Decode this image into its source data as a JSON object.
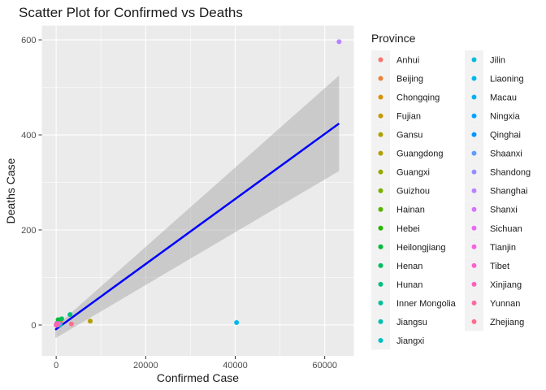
{
  "chart_data": {
    "type": "scatter",
    "title": "Scatter Plot for Confirmed vs Deaths",
    "xlabel": "Confirmed Case",
    "ylabel": "Deaths Case",
    "xlim": [
      -3200,
      66500
    ],
    "ylim": [
      -65,
      630
    ],
    "x_ticks": [
      0,
      20000,
      40000,
      60000
    ],
    "x_tick_labels": [
      "0",
      "20000",
      "40000",
      "60000"
    ],
    "y_ticks": [
      0,
      200,
      400,
      600
    ],
    "y_tick_labels": [
      "0",
      "200",
      "400",
      "600"
    ],
    "grid": true,
    "legend": {
      "title": "Province",
      "placement": "right",
      "columns": 2
    },
    "fit": {
      "method": "linear",
      "color": "#0000FF",
      "band_color": "#999999",
      "x_range": [
        -200,
        63200
      ],
      "line": [
        -10,
        424
      ],
      "band_upper": [
        -4,
        525
      ],
      "band_lower": [
        -28,
        324
      ]
    },
    "series": [
      {
        "name": "Anhui",
        "color": "#F8766D",
        "x": 990,
        "y": 6
      },
      {
        "name": "Beijing",
        "color": "#EC8239",
        "x": 400,
        "y": 4
      },
      {
        "name": "Chongqing",
        "color": "#DB8E00",
        "x": 576,
        "y": 6
      },
      {
        "name": "Fujian",
        "color": "#C79800",
        "x": 296,
        "y": 1
      },
      {
        "name": "Gansu",
        "color": "#AFA100",
        "x": 91,
        "y": 2
      },
      {
        "name": "Guangdong",
        "color": "#B49F00",
        "x": 7600,
        "y": 8
      },
      {
        "name": "Guangxi",
        "color": "#96A900",
        "x": 245,
        "y": 2
      },
      {
        "name": "Guizhou",
        "color": "#7AAF00",
        "x": 146,
        "y": 2
      },
      {
        "name": "Hainan",
        "color": "#56B400",
        "x": 168,
        "y": 4
      },
      {
        "name": "Hebei",
        "color": "#27B700",
        "x": 311,
        "y": 4
      },
      {
        "name": "Heilongjiang",
        "color": "#00BA38",
        "x": 445,
        "y": 11
      },
      {
        "name": "Henan",
        "color": "#00BD5F",
        "x": 1231,
        "y": 13
      },
      {
        "name": "Hunan",
        "color": "#00BF7D",
        "x": 3100,
        "y": 22
      },
      {
        "name": "Inner Mongolia",
        "color": "#00C097",
        "x": 72,
        "y": 0
      },
      {
        "name": "Jiangsu",
        "color": "#00C0AF",
        "x": 631,
        "y": 0
      },
      {
        "name": "Jiangxi",
        "color": "#00BFC4",
        "x": 930,
        "y": 1
      },
      {
        "name": "Jilin",
        "color": "#00BCD8",
        "x": 89,
        "y": 1
      },
      {
        "name": "Liaoning",
        "color": "#00B7EB",
        "x": 40300,
        "y": 5
      },
      {
        "name": "Macau",
        "color": "#00B0F6",
        "x": 10,
        "y": 0
      },
      {
        "name": "Ningxia",
        "color": "#00A5FF",
        "x": 70,
        "y": 0
      },
      {
        "name": "Qinghai",
        "color": "#0098FF",
        "x": 18,
        "y": 0
      },
      {
        "name": "Shaanxi",
        "color": "#619CFF",
        "x": 240,
        "y": 0
      },
      {
        "name": "Shandong",
        "color": "#9590FF",
        "x": 540,
        "y": 2
      },
      {
        "name": "Shanghai",
        "color": "#B983FF",
        "x": 63200,
        "y": 596
      },
      {
        "name": "Shanxi",
        "color": "#D575FE",
        "x": 130,
        "y": 0
      },
      {
        "name": "Sichuan",
        "color": "#E76BF3",
        "x": 480,
        "y": 3
      },
      {
        "name": "Tianjin",
        "color": "#F564E3",
        "x": 130,
        "y": 3
      },
      {
        "name": "Tibet",
        "color": "#FD61D1",
        "x": 1,
        "y": 0
      },
      {
        "name": "Xinjiang",
        "color": "#FF62BC",
        "x": 70,
        "y": 1
      },
      {
        "name": "Yunnan",
        "color": "#FF67A4",
        "x": 170,
        "y": 0
      },
      {
        "name": "Zhejiang",
        "color": "#FF6C90",
        "x": 3400,
        "y": 2
      }
    ]
  }
}
